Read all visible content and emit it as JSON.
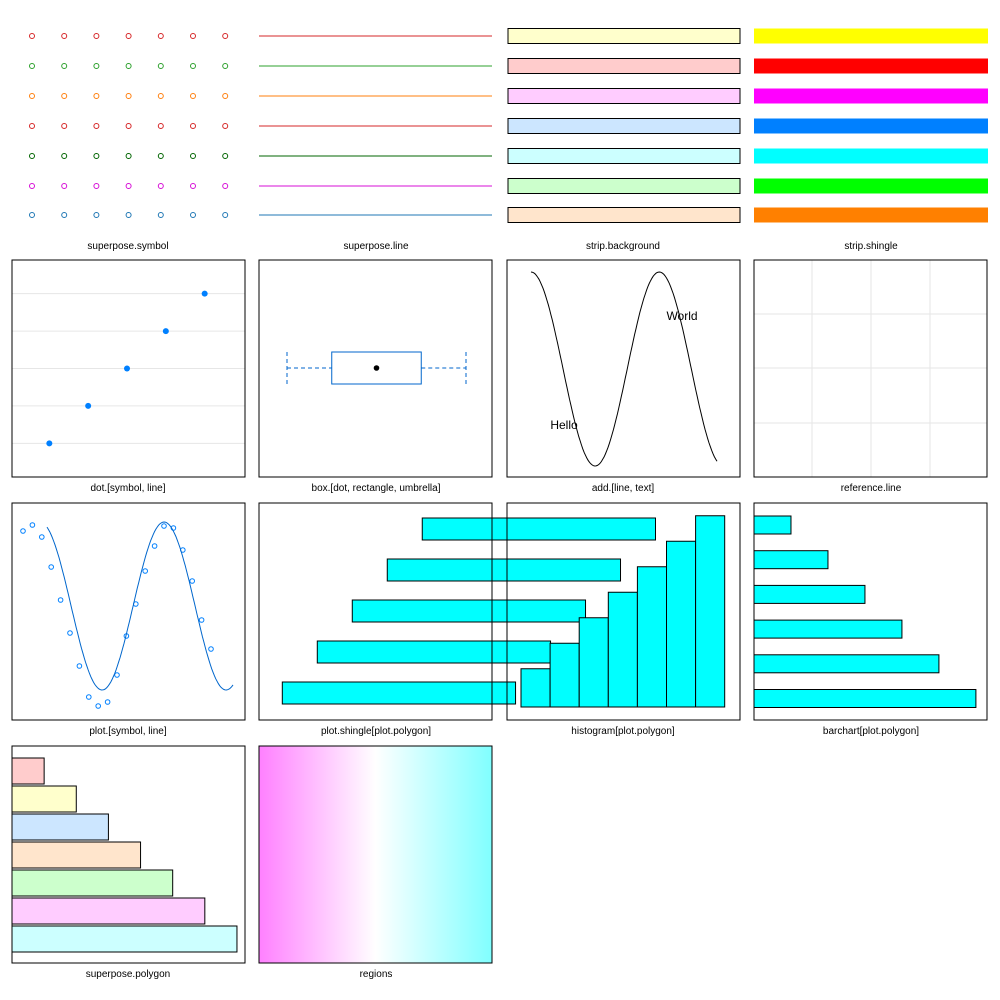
{
  "colors": {
    "superpose_symbol": [
      "#d62728",
      "#2ca02c",
      "#ff7f0e",
      "#d62728",
      "#006400",
      "#d70fd7",
      "#1f77b4"
    ],
    "superpose_line": [
      "#d62728",
      "#2ca02c",
      "#ff7f0e",
      "#d62728",
      "#006400",
      "#d70fd7",
      "#1f77b4"
    ],
    "strip_background": [
      "#ffffcc",
      "#ffcccc",
      "#ffccff",
      "#cce6ff",
      "#ccffff",
      "#ccffcc",
      "#ffe5cc"
    ],
    "strip_shingle": [
      "#ffff00",
      "#ff0000",
      "#ff00ff",
      "#0080ff",
      "#00ffff",
      "#00ff00",
      "#ff8000"
    ],
    "accent": "#0080ff",
    "accent_line": "#0066cc",
    "fill": "#00ffff",
    "superpose_polygon": [
      "#ffcccc",
      "#ffffcc",
      "#cce6ff",
      "#ffe5cc",
      "#ccffcc",
      "#ffccff",
      "#ccffff"
    ],
    "regions_low": "#ff80ff",
    "regions_high": "#80ffff"
  },
  "chart_data": [
    {
      "type": "scatter",
      "panel": "superpose.symbol",
      "label": "superpose.symbol",
      "x": [
        1,
        2,
        3,
        4,
        5,
        6,
        7
      ],
      "rows": 7
    },
    {
      "type": "line",
      "panel": "superpose.line",
      "label": "superpose.line",
      "rows": 7
    },
    {
      "type": "bar",
      "panel": "strip.background",
      "label": "strip.background",
      "rows": 7
    },
    {
      "type": "bar",
      "panel": "strip.shingle",
      "label": "strip.shingle",
      "rows": 7
    },
    {
      "type": "scatter",
      "panel": "dot",
      "label": "dot.[symbol, line]",
      "x": [
        1,
        2,
        3,
        4,
        5
      ],
      "y": [
        1,
        2,
        3,
        4,
        5
      ],
      "xlim": [
        0,
        6
      ],
      "ylim": [
        0.1,
        5.9
      ]
    },
    {
      "type": "box",
      "panel": "box",
      "label": "box.[dot, rectangle, umbrella]",
      "min": 0,
      "q1": 0.2,
      "median": 0.4,
      "q3": 0.6,
      "max": 0.8
    },
    {
      "type": "line",
      "panel": "add",
      "label": "add.[line, text]",
      "annotations": [
        "Hello",
        "World"
      ],
      "xlim": [
        0,
        1
      ],
      "ylim": [
        -1.05,
        1.05
      ]
    },
    {
      "type": "line",
      "panel": "reference",
      "label": "reference.line",
      "gridlines_x": 3,
      "gridlines_y": 3
    },
    {
      "type": "scatter",
      "panel": "plot",
      "label": "plot.[symbol, line]",
      "x": [
        1,
        2,
        3,
        4,
        5,
        6,
        7,
        8,
        9,
        10,
        11,
        12,
        13,
        14,
        15,
        16,
        17,
        18,
        19,
        20,
        21
      ],
      "y": [
        0.78,
        0.84,
        0.72,
        0.42,
        0.09,
        -0.24,
        -0.57,
        -0.88,
        -0.97,
        -0.93,
        -0.66,
        -0.27,
        0.05,
        0.38,
        0.63,
        0.83,
        0.81,
        0.59,
        0.28,
        -0.11,
        -0.4
      ],
      "ylim": [
        -1.05,
        0.98
      ]
    },
    {
      "type": "bar",
      "panel": "plot.shingle",
      "label": "plot.shingle[plot.polygon]",
      "intervals": [
        [
          0.1,
          0.6
        ],
        [
          0.175,
          0.675
        ],
        [
          0.25,
          0.75
        ],
        [
          0.325,
          0.825
        ],
        [
          0.4,
          0.9
        ]
      ]
    },
    {
      "type": "bar",
      "panel": "histogram",
      "label": "histogram[plot.polygon]",
      "values": [
        1.5,
        2.5,
        3.5,
        4.5,
        5.5,
        6.5,
        7.5
      ],
      "ylim": [
        0,
        8
      ]
    },
    {
      "type": "bar",
      "panel": "barchart",
      "label": "barchart[plot.polygon]",
      "values": [
        1,
        2,
        3,
        4,
        5,
        6
      ],
      "xlim": [
        0,
        6.3
      ]
    },
    {
      "type": "bar",
      "panel": "superpose.polygon",
      "label": "superpose.polygon",
      "values": [
        1,
        2,
        3,
        4,
        5,
        6,
        7
      ],
      "xlim": [
        0,
        7.25
      ]
    },
    {
      "type": "heatmap",
      "panel": "regions",
      "label": "regions"
    }
  ]
}
